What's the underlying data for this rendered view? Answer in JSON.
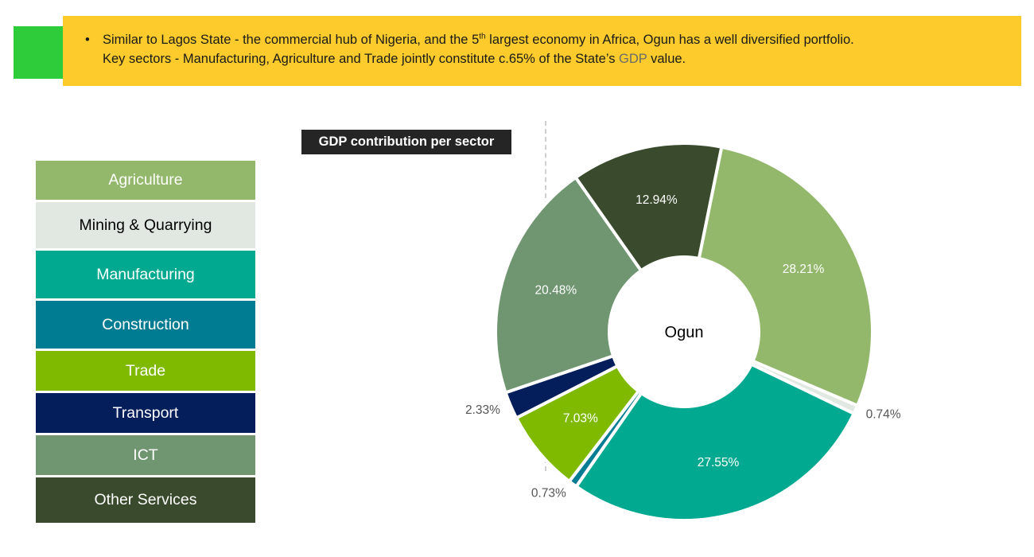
{
  "banner": {
    "bullet": "•",
    "line1_a": "Similar to Lagos State - the commercial hub of Nigeria, and the 5",
    "line1_sup": "th",
    "line1_b": " largest economy in Africa, Ogun has a well diversified portfolio.",
    "line2_a": "Key sectors - Manufacturing, Agriculture and Trade jointly constitute c.65% of the State’s",
    "line2_gdp": "GDP",
    "line2_b": "value.",
    "accent_color": "#2ecc3a",
    "background_color": "#fdcc2c"
  },
  "chart_data": {
    "type": "pie",
    "title": "GDP contribution per sector",
    "center_label": "Ogun",
    "legend_position": "left",
    "categories": [
      "Agriculture",
      "Mining & Quarrying",
      "Manufacturing",
      "Construction",
      "Trade",
      "Transport",
      "ICT",
      "Other Services"
    ],
    "values": [
      28.21,
      0.74,
      27.55,
      0.73,
      7.03,
      2.33,
      20.48,
      12.94
    ],
    "labels": [
      "28.21%",
      "0.74%",
      "27.55%",
      "0.73%",
      "7.03%",
      "2.33%",
      "20.48%",
      "12.94%"
    ],
    "colors": [
      "#93b86b",
      "#e1e8e1",
      "#00a990",
      "#007c92",
      "#7fba00",
      "#041e5c",
      "#6f9671",
      "#3a4a2c"
    ],
    "label_colors": [
      "#ffffff",
      "#000000",
      "#ffffff",
      "#ffffff",
      "#ffffff",
      "#ffffff",
      "#ffffff",
      "#ffffff"
    ]
  }
}
